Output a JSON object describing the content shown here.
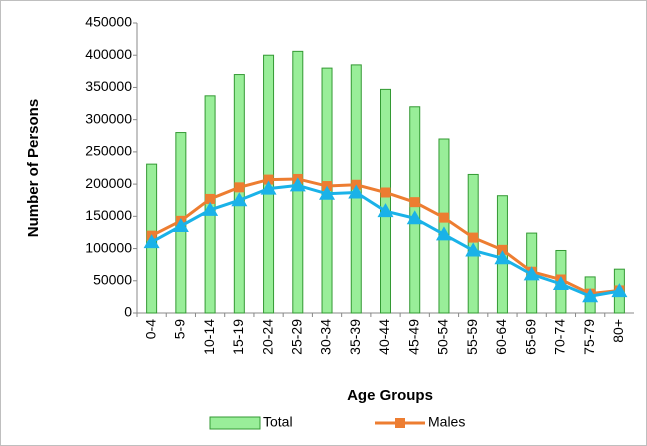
{
  "chart_data": {
    "type": "bar",
    "x_label": "Age Groups",
    "y_label": "Number of Persons",
    "categories": [
      "0-4",
      "5-9",
      "10-14",
      "15-19",
      "20-24",
      "25-29",
      "30-34",
      "35-39",
      "40-44",
      "45-49",
      "50-54",
      "55-59",
      "60-64",
      "65-69",
      "70-74",
      "75-79",
      "80+"
    ],
    "series": [
      {
        "name": "Total",
        "type": "bar",
        "color": "#99ee99",
        "stroke": "#339933",
        "values": [
          231000,
          280000,
          337000,
          370000,
          400000,
          406000,
          380000,
          385000,
          347000,
          320000,
          270000,
          215000,
          182000,
          124000,
          97000,
          56000,
          68000
        ]
      },
      {
        "name": "Males",
        "type": "line",
        "marker": "square",
        "color": "#ed7d31",
        "values": [
          120000,
          143000,
          177000,
          195000,
          207000,
          208000,
          197000,
          199000,
          187000,
          172000,
          148000,
          117000,
          98000,
          64000,
          52000,
          30000,
          35000
        ]
      },
      {
        "type": "line",
        "marker": "triangle",
        "color": "#1ab2e8",
        "values": [
          110000,
          135000,
          160000,
          175000,
          193000,
          198000,
          185000,
          187000,
          158000,
          147000,
          122000,
          97000,
          85000,
          60000,
          45000,
          26000,
          34000
        ]
      }
    ],
    "ylim": [
      0,
      450000
    ],
    "yticks": [
      0,
      50000,
      100000,
      150000,
      200000,
      250000,
      300000,
      350000,
      400000,
      450000
    ],
    "grid": false,
    "legend": "bottom"
  }
}
